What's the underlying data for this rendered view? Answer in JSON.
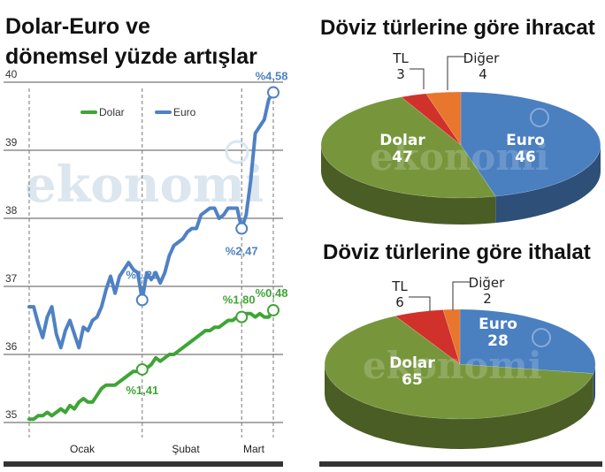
{
  "left": {
    "title_line1": "Dolar-Euro ve",
    "title_line2": "dönemsel yüzde artışlar"
  },
  "right_top": {
    "title": "Döviz türlerine göre ihracat"
  },
  "right_bottom": {
    "title": "Döviz türlerine göre ithalat"
  },
  "watermark": "ekonomi",
  "colors": {
    "dolar": "#3fa535",
    "euro": "#4f81c4",
    "pie_dolar": "#77963c",
    "pie_euro": "#4a7fc0",
    "pie_tl": "#d0312a",
    "pie_diger": "#e8762d",
    "gridline": "#555555",
    "bottom_bar": "#333333"
  },
  "chart_data": [
    {
      "type": "line",
      "title": "Dolar-Euro ve dönemsel yüzde artışlar",
      "ylim": [
        35,
        40
      ],
      "yticks": [
        "35",
        "36",
        "37",
        "38",
        "39",
        "40"
      ],
      "xtick_labels": [
        "Ocak",
        "Şubat",
        "Mart"
      ],
      "grid": true,
      "legend_position": "top-left",
      "legend": [
        "Dolar",
        "Euro"
      ],
      "series": [
        {
          "name": "Euro",
          "values": [
            36.7,
            36.7,
            36.45,
            36.25,
            36.55,
            36.7,
            36.3,
            36.1,
            36.35,
            36.5,
            36.3,
            36.1,
            36.4,
            36.35,
            36.5,
            36.55,
            36.7,
            36.95,
            37.15,
            36.9,
            37.15,
            37.25,
            37.35,
            37.25,
            37.2,
            36.8,
            37.2,
            37.1,
            37.2,
            37.05,
            37.2,
            37.45,
            37.6,
            37.65,
            37.7,
            37.8,
            37.85,
            37.85,
            38.05,
            38.1,
            38.15,
            38.15,
            38.0,
            38.05,
            38.15,
            38.15,
            38.15,
            37.85,
            38.05,
            38.55,
            39.25,
            39.35,
            39.45,
            39.75,
            39.85
          ]
        },
        {
          "name": "Dolar",
          "values": [
            35.05,
            35.05,
            35.1,
            35.1,
            35.15,
            35.1,
            35.15,
            35.2,
            35.15,
            35.25,
            35.2,
            35.3,
            35.35,
            35.3,
            35.3,
            35.4,
            35.5,
            35.55,
            35.55,
            35.55,
            35.6,
            35.65,
            35.7,
            35.75,
            35.75,
            35.78,
            35.8,
            35.85,
            35.95,
            35.9,
            35.95,
            36.0,
            36.0,
            36.05,
            36.1,
            36.15,
            36.2,
            36.25,
            36.3,
            36.35,
            36.35,
            36.4,
            36.4,
            36.45,
            36.5,
            36.5,
            36.55,
            36.55,
            36.6,
            36.6,
            36.55,
            36.6,
            36.55,
            36.55,
            36.65
          ]
        }
      ],
      "annotations": [
        {
          "series": "Euro",
          "index": 25,
          "label": "%1,20"
        },
        {
          "series": "Euro",
          "index": 47,
          "label": "%2,47"
        },
        {
          "series": "Euro",
          "index": 54,
          "label": "%4,58"
        },
        {
          "series": "Dolar",
          "index": 25,
          "label": "%1,41"
        },
        {
          "series": "Dolar",
          "index": 47,
          "label": "%1,80"
        },
        {
          "series": "Dolar",
          "index": 54,
          "label": "%0,48"
        }
      ]
    },
    {
      "type": "pie",
      "title": "Döviz türlerine göre ihracat",
      "slices": [
        {
          "name": "Euro",
          "value": 46,
          "label_value": "46",
          "color": "#4a7fc0"
        },
        {
          "name": "Dolar",
          "value": 47,
          "label_value": "47",
          "color": "#77963c"
        },
        {
          "name": "TL",
          "value": 3,
          "label_value": "3",
          "color": "#d0312a"
        },
        {
          "name": "Diğer",
          "value": 4,
          "label_value": "4",
          "color": "#e8762d"
        }
      ]
    },
    {
      "type": "pie",
      "title": "Döviz türlerine göre ithalat",
      "slices": [
        {
          "name": "Euro",
          "value": 28,
          "label_value": "28",
          "color": "#4a7fc0"
        },
        {
          "name": "Dolar",
          "value": 65,
          "label_value": "65",
          "color": "#77963c"
        },
        {
          "name": "TL",
          "value": 6,
          "label_value": "6",
          "color": "#d0312a"
        },
        {
          "name": "Diğer",
          "value": 2,
          "label_value": "2",
          "color": "#e8762d"
        }
      ]
    }
  ]
}
